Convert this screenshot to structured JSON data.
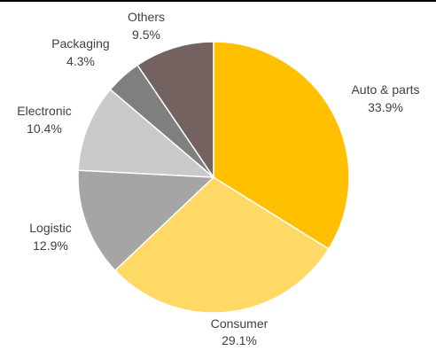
{
  "chart_data": {
    "type": "pie",
    "start_angle_deg": 0,
    "direction": "clockwise",
    "slices": [
      {
        "label": "Auto & parts",
        "value": 33.9,
        "value_label": "33.9%",
        "color": "#FFC000"
      },
      {
        "label": "Consumer",
        "value": 29.1,
        "value_label": "29.1%",
        "color": "#FFD966"
      },
      {
        "label": "Logistic",
        "value": 12.9,
        "value_label": "12.9%",
        "color": "#A5A5A5"
      },
      {
        "label": "Electronic",
        "value": 10.4,
        "value_label": "10.4%",
        "color": "#C9C9C9"
      },
      {
        "label": "Packaging",
        "value": 4.3,
        "value_label": "4.3%",
        "color": "#7F7F7F"
      },
      {
        "label": "Others",
        "value": 9.5,
        "value_label": "9.5%",
        "color": "#736260"
      }
    ],
    "slice_border_color": "#FFFFFF",
    "legend": "none"
  }
}
